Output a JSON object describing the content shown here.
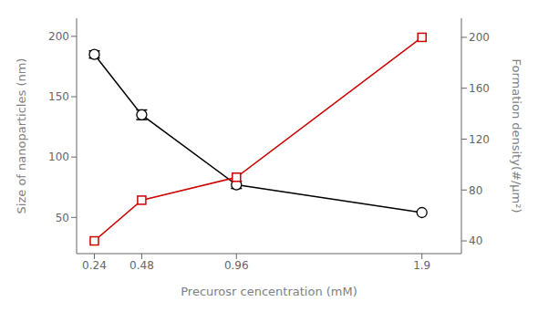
{
  "chart_data": {
    "type": "line",
    "x_label": "Precurosr cencentration (mM)",
    "y_label": "Size of nanoparticles (nm)",
    "y2_label": "Formation density(#/μm²)",
    "x": [
      0.24,
      0.48,
      0.96,
      1.9
    ],
    "xlim": [
      0.15,
      2.1
    ],
    "xticks": [
      0.24,
      0.48,
      0.96,
      1.9
    ],
    "ylim": [
      20,
      215
    ],
    "yticks": [
      50,
      100,
      150,
      200
    ],
    "y2lim": [
      30,
      215
    ],
    "y2ticks": [
      40,
      80,
      120,
      160,
      200
    ],
    "grid": false,
    "series": [
      {
        "color": "#000000",
        "marker": "circle",
        "line_style": "solid",
        "values": [
          185,
          135,
          77,
          54
        ],
        "errors": [
          3,
          4,
          3,
          0
        ]
      },
      {
        "color": "#cc0000",
        "marker": "square",
        "line_style": "solid",
        "axis": "y2",
        "values": [
          40,
          72,
          90,
          200
        ]
      }
    ]
  }
}
